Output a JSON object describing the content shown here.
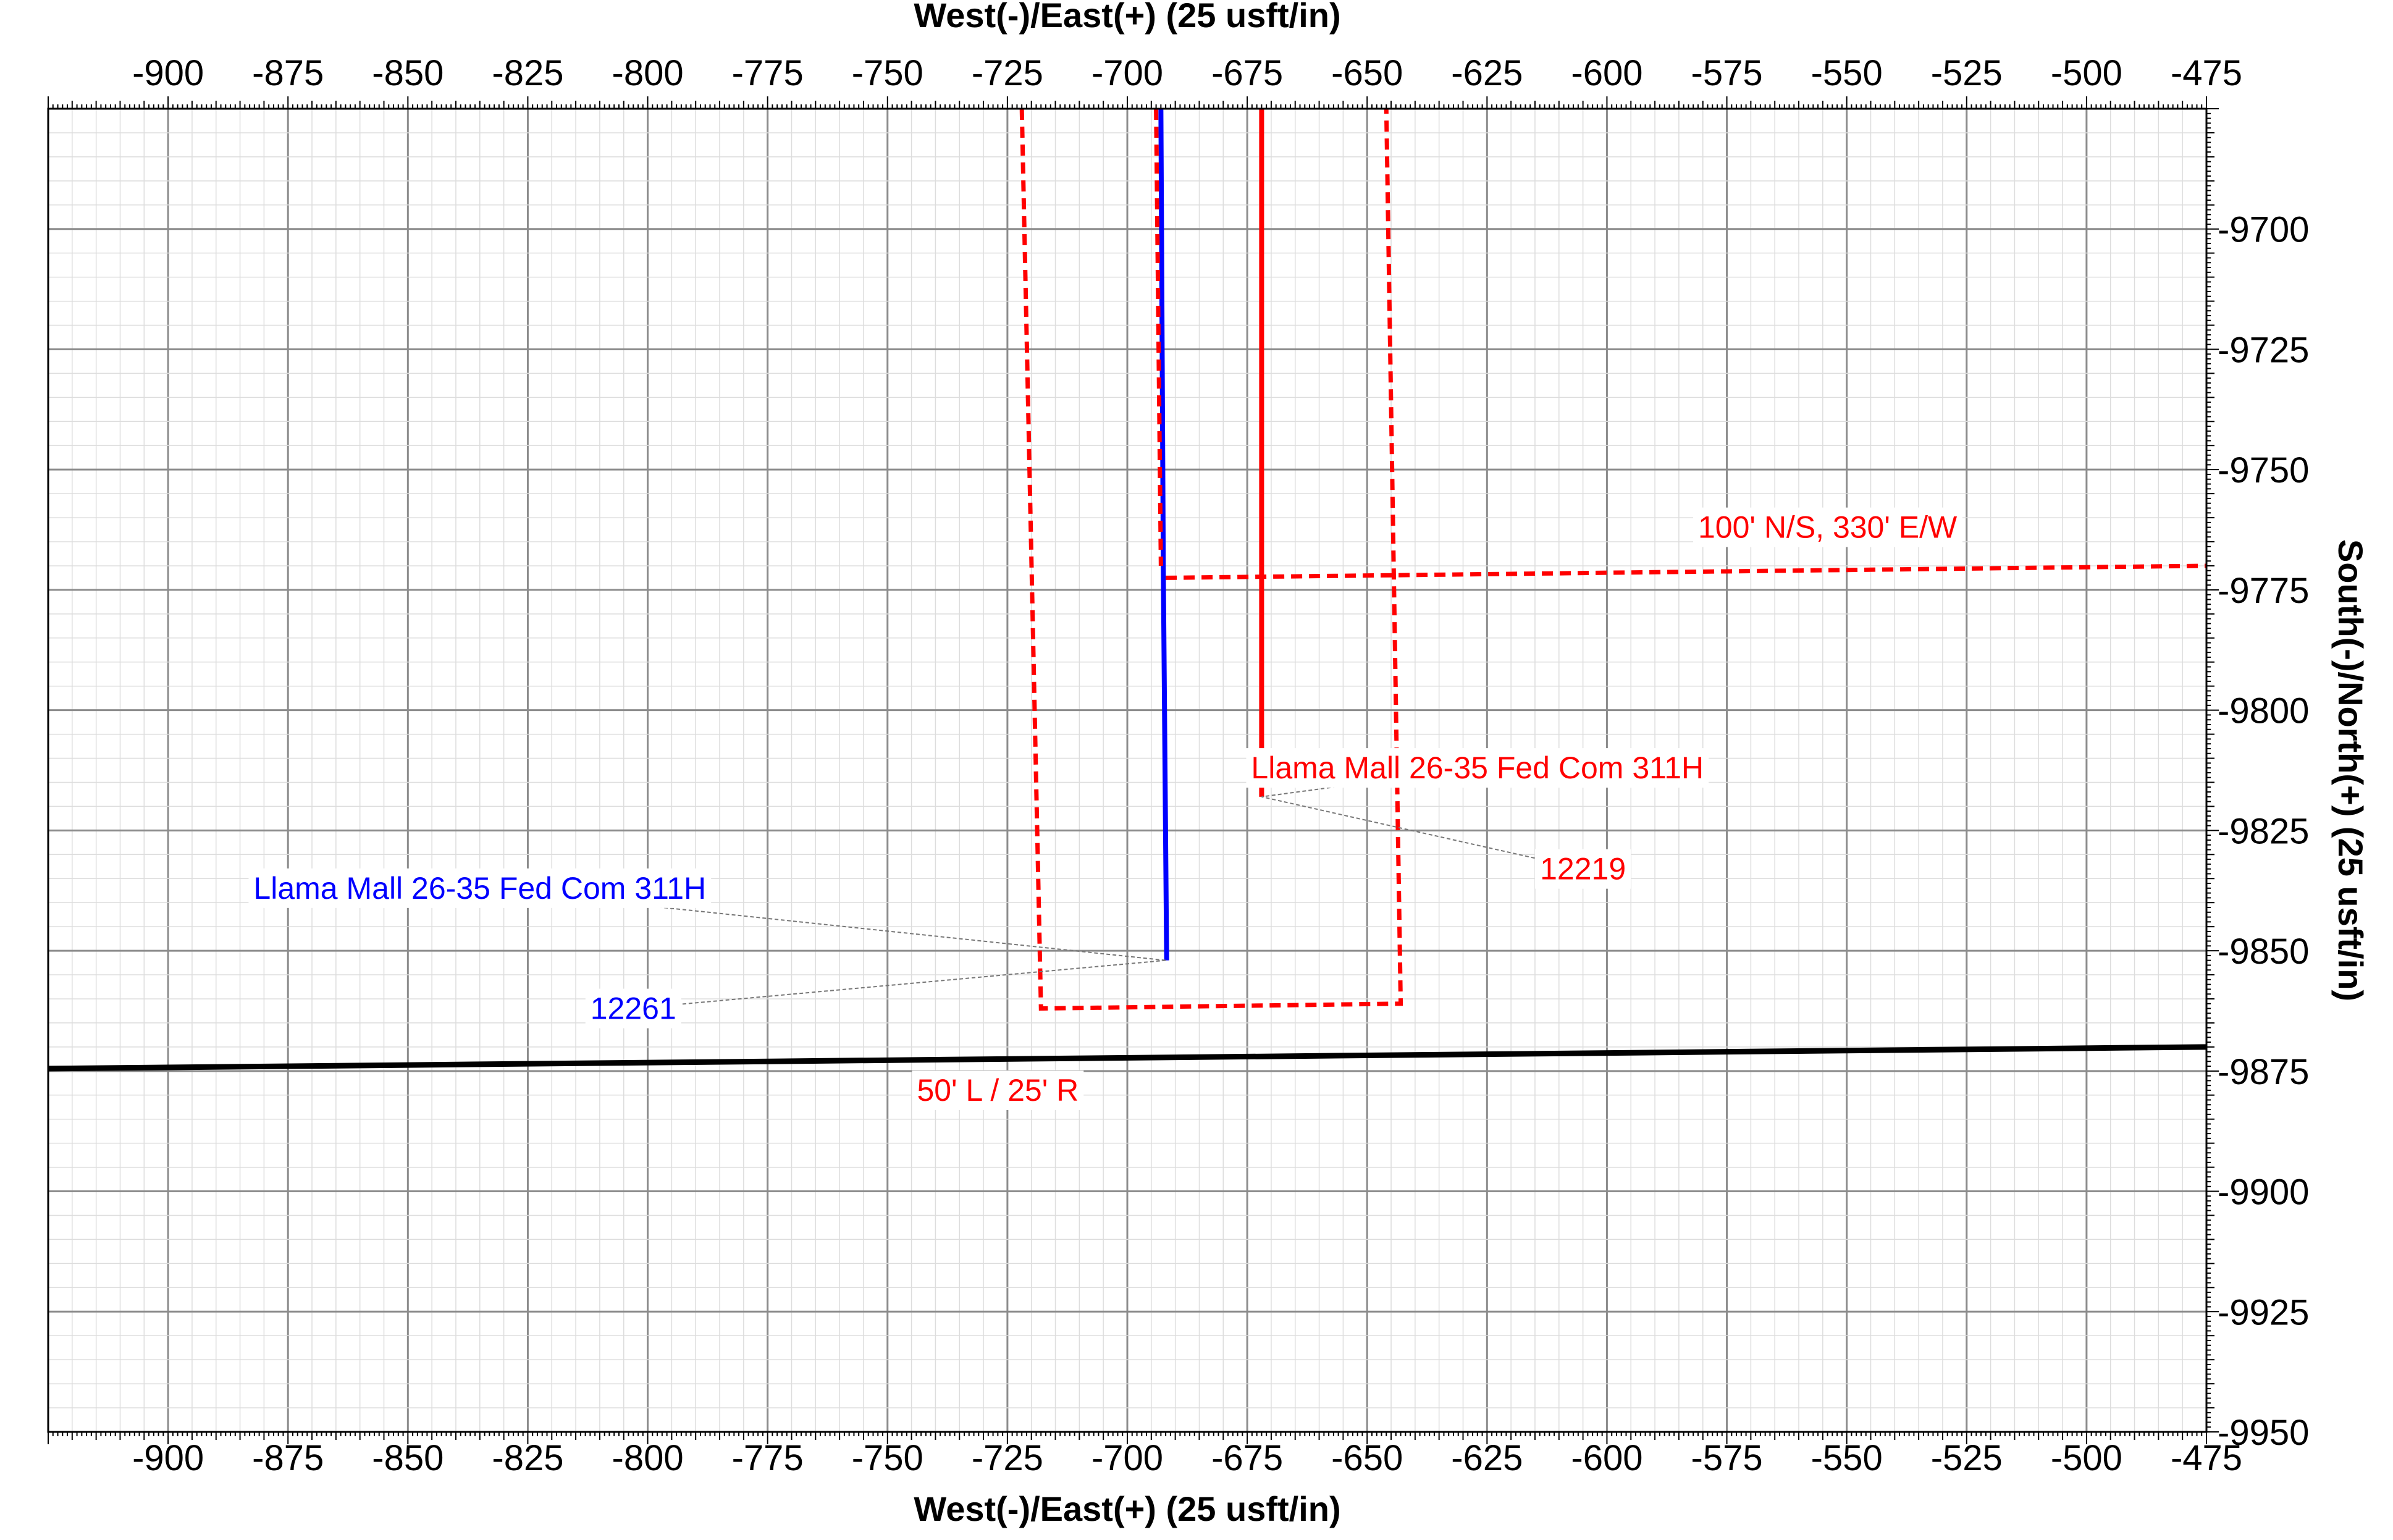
{
  "chart_data": {
    "type": "line",
    "xlabel": "West(-)/East(+) (25 usft/in)",
    "ylabel": "South(-)/North(+) (25 usft/in)",
    "xlim": [
      -925,
      -475
    ],
    "ylim": [
      -9950,
      -9675
    ],
    "x_ticks": [
      -900,
      -875,
      -850,
      -825,
      -800,
      -775,
      -750,
      -725,
      -700,
      -675,
      -650,
      -625,
      -600,
      -575,
      -550,
      -525,
      -500,
      -475
    ],
    "y_ticks": [
      -9700,
      -9725,
      -9750,
      -9775,
      -9800,
      -9825,
      -9850,
      -9875,
      -9900,
      -9925,
      -9950
    ],
    "grid": true,
    "colors": {
      "plan": "#ff0000",
      "actual": "#0000ff",
      "lease_line": "#000000",
      "grid_major": "#8c8c8c",
      "grid_minor": "#dddddd"
    },
    "series": [
      {
        "key": "planned",
        "style": "solid",
        "color": "#ff0000",
        "points": [
          [
            -672,
            -9675
          ],
          [
            -672,
            -9818
          ]
        ]
      },
      {
        "key": "actual",
        "style": "solid",
        "color": "#0000ff",
        "points": [
          [
            -693,
            -9675
          ],
          [
            -692.5,
            -9770
          ],
          [
            -691.8,
            -9852
          ]
        ]
      },
      {
        "key": "setback_box",
        "style": "dashed",
        "color": "#ff0000",
        "points": [
          [
            -722,
            -9675
          ],
          [
            -718,
            -9862
          ],
          [
            -643,
            -9861
          ],
          [
            -646,
            -9675
          ]
        ]
      },
      {
        "key": "inner_dashed",
        "style": "dashed",
        "color": "#ff0000",
        "points": [
          [
            -694,
            -9675
          ],
          [
            -693,
            -9770
          ]
        ]
      },
      {
        "key": "hardline",
        "style": "dashed",
        "color": "#ff0000",
        "points": [
          [
            -692,
            -9772.5
          ],
          [
            -475,
            -9770
          ]
        ]
      },
      {
        "key": "lease_boundary",
        "style": "solid",
        "color": "#000000",
        "points": [
          [
            -925,
            -9874.5
          ],
          [
            -475,
            -9870
          ]
        ]
      }
    ],
    "annotations": [
      {
        "key": "planned_name",
        "text": "Llama Mall 26-35 Fed Com 311H",
        "color": "#ff0000",
        "anchor_x": -627,
        "anchor_y": -9812,
        "target_x": -672,
        "target_y": -9818
      },
      {
        "key": "planned_md",
        "text": "12219",
        "color": "#ff0000",
        "anchor_x": -605,
        "anchor_y": -9833,
        "target_x": -672,
        "target_y": -9818
      },
      {
        "key": "actual_name",
        "text": "Llama Mall 26-35 Fed Com 311H",
        "color": "#0000ff",
        "anchor_x": -835,
        "anchor_y": -9837,
        "target_x": -692,
        "target_y": -9852
      },
      {
        "key": "actual_md",
        "text": "12261",
        "color": "#0000ff",
        "anchor_x": -803,
        "anchor_y": -9862,
        "target_x": -692,
        "target_y": -9852
      },
      {
        "key": "hardline_label",
        "text": "100' N/S, 330' E/W",
        "color": "#ff0000",
        "anchor_x": -554,
        "anchor_y": -9762
      },
      {
        "key": "setback_label",
        "text": "50' L / 25' R",
        "color": "#ff0000",
        "anchor_x": -727,
        "anchor_y": -9879
      }
    ]
  }
}
